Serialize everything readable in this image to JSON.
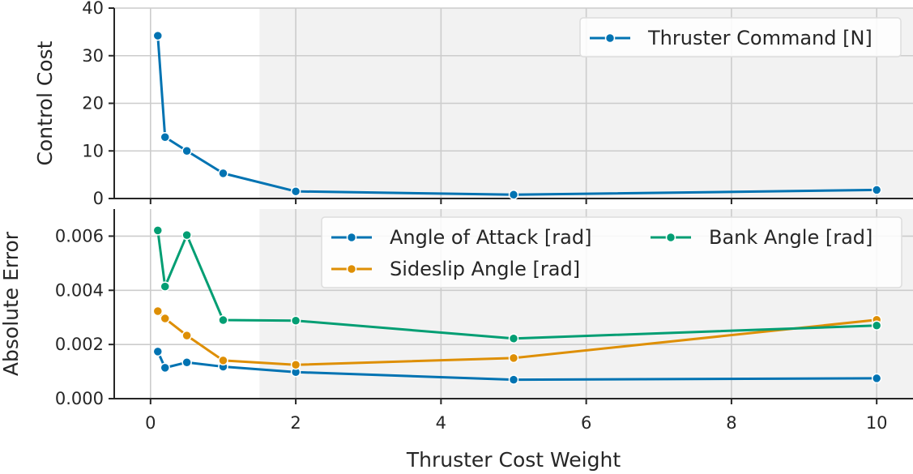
{
  "chart_data": [
    {
      "type": "line",
      "title": "",
      "xlabel": "",
      "ylabel": "Control Cost",
      "xlim": [
        -0.5,
        10.5
      ],
      "ylim": [
        0,
        40
      ],
      "xticks": [
        0,
        2,
        4,
        6,
        8,
        10
      ],
      "yticks": [
        0,
        10,
        20,
        30,
        40
      ],
      "grid": true,
      "shaded_region_x": [
        1.5,
        10.5
      ],
      "legend": "top-right",
      "x": [
        0.1,
        0.2,
        0.5,
        1,
        2,
        5,
        10
      ],
      "series": [
        {
          "name": "Thruster Command [N]",
          "color": "#0173b2",
          "values": [
            34.2,
            12.9,
            10.0,
            5.3,
            1.5,
            0.8,
            1.8
          ]
        }
      ]
    },
    {
      "type": "line",
      "title": "",
      "xlabel": "Thruster Cost Weight",
      "ylabel": "Absolute Error",
      "xlim": [
        -0.5,
        10.5
      ],
      "ylim": [
        0,
        0.007
      ],
      "xticks": [
        0,
        2,
        4,
        6,
        8,
        10
      ],
      "yticks": [
        0.0,
        0.002,
        0.004,
        0.006
      ],
      "ytick_labels": [
        "0.000",
        "0.002",
        "0.004",
        "0.006"
      ],
      "grid": true,
      "shaded_region_x": [
        1.5,
        10.5
      ],
      "legend": "top-right",
      "x": [
        0.1,
        0.2,
        0.5,
        1,
        2,
        5,
        10
      ],
      "series": [
        {
          "name": "Angle of Attack [rad]",
          "color": "#0173b2",
          "values": [
            0.00174,
            0.00114,
            0.00134,
            0.00118,
            0.00098,
            0.0007,
            0.00075
          ]
        },
        {
          "name": "Sideslip Angle [rad]",
          "color": "#de8f05",
          "values": [
            0.00323,
            0.00296,
            0.00233,
            0.00141,
            0.00125,
            0.0015,
            0.00291
          ]
        },
        {
          "name": "Bank Angle [rad]",
          "color": "#029e73",
          "values": [
            0.00621,
            0.00414,
            0.00604,
            0.0029,
            0.00288,
            0.00222,
            0.0027
          ]
        }
      ]
    }
  ]
}
